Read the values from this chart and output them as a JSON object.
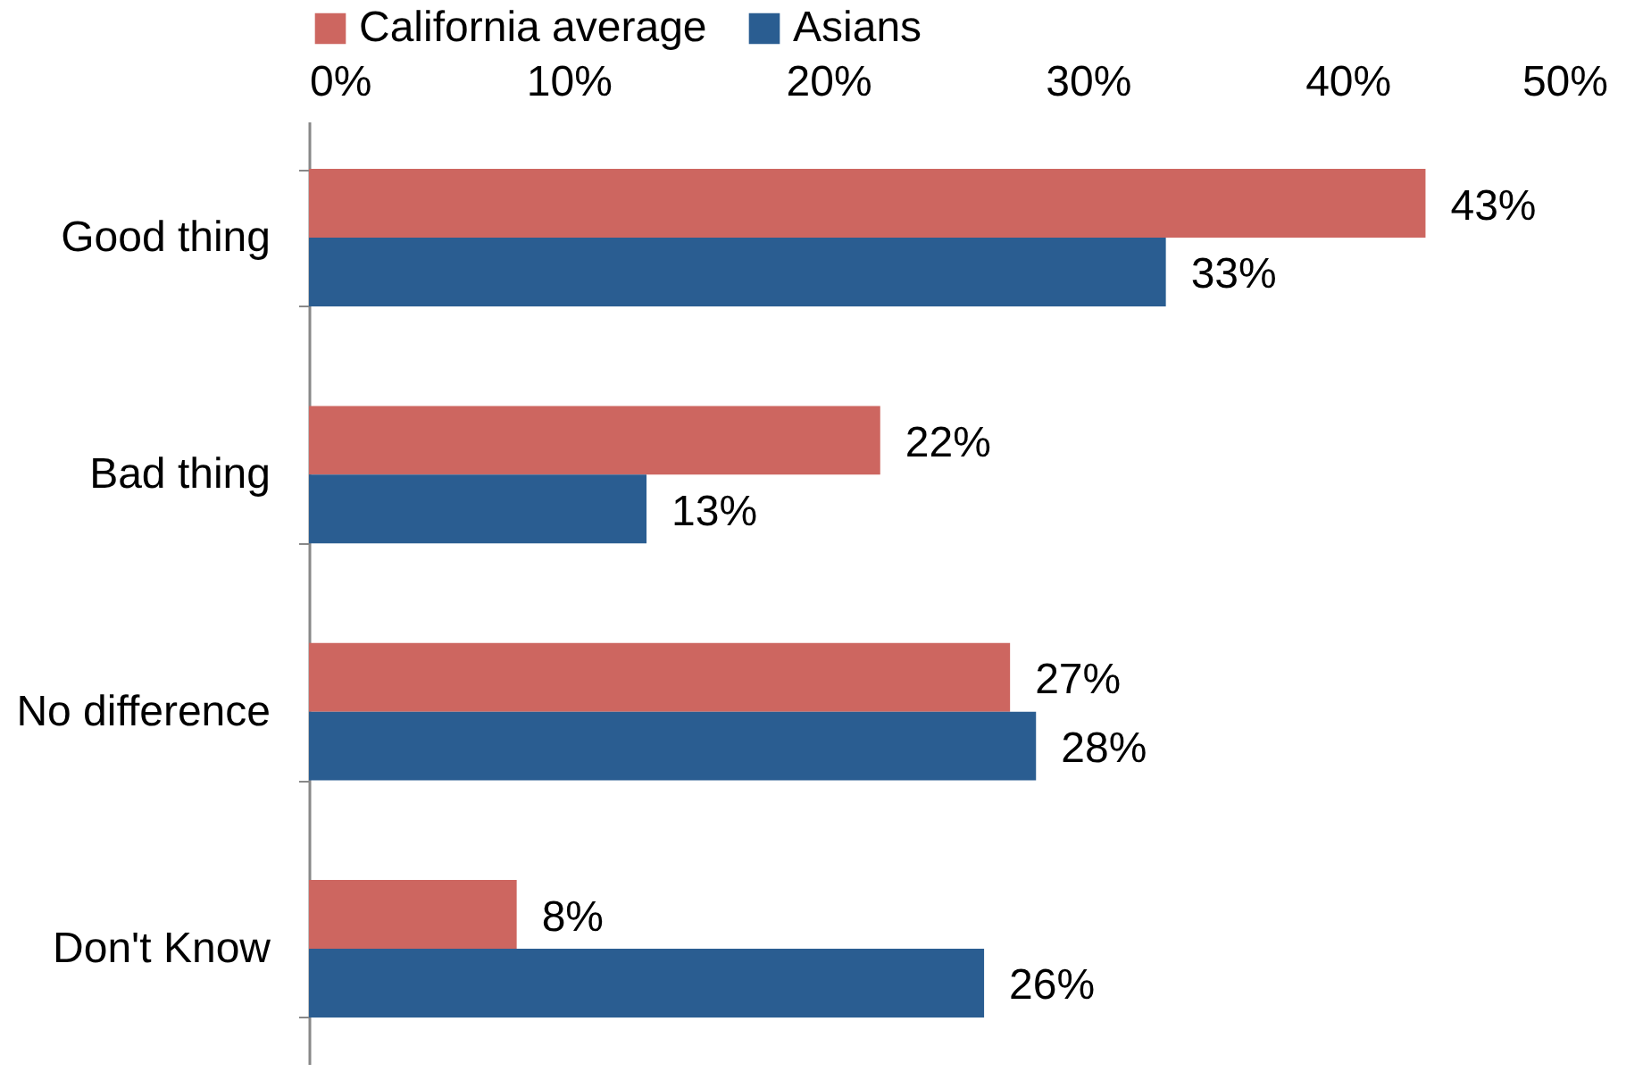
{
  "chart_data": {
    "type": "bar",
    "orientation": "horizontal",
    "categories": [
      "Good thing",
      "Bad thing",
      "No difference",
      "Don't Know"
    ],
    "series": [
      {
        "name": "California average",
        "color": "#cd6660",
        "values": [
          43,
          22,
          27,
          8
        ],
        "value_labels": [
          "43%",
          "22%",
          "27%",
          "8%"
        ]
      },
      {
        "name": "Asians",
        "color": "#2a5d91",
        "values": [
          33,
          13,
          28,
          26
        ],
        "value_labels": [
          "33%",
          "13%",
          "28%",
          "26%"
        ]
      }
    ],
    "xlim": [
      0,
      50
    ],
    "xticks": [
      {
        "value": 0,
        "label": "0%"
      },
      {
        "value": 10,
        "label": "10%"
      },
      {
        "value": 20,
        "label": "20%"
      },
      {
        "value": 30,
        "label": "30%"
      },
      {
        "value": 40,
        "label": "40%"
      },
      {
        "value": 50,
        "label": "50%"
      }
    ],
    "legend": "top",
    "grid": false
  }
}
